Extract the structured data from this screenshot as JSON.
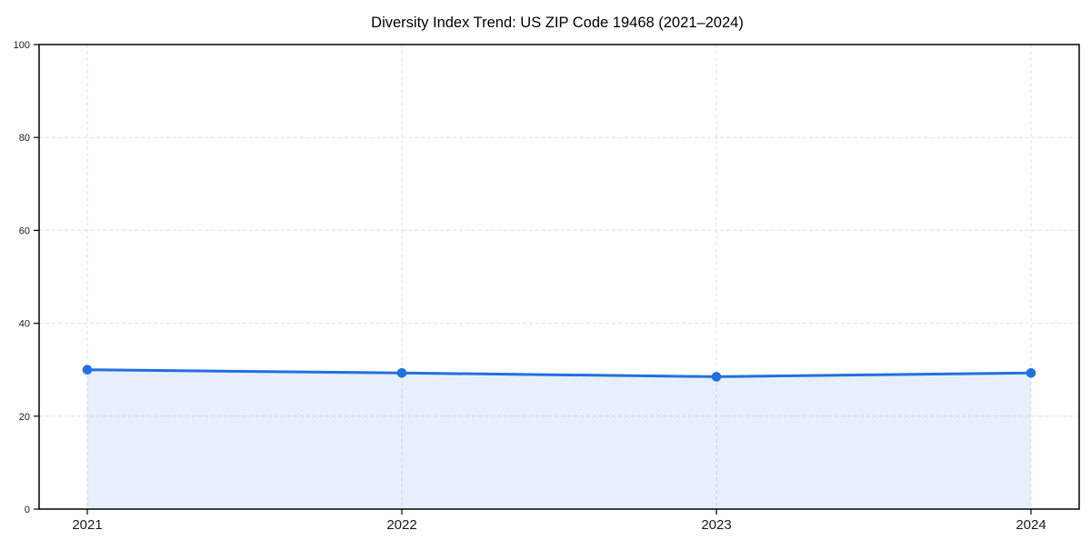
{
  "chart_data": {
    "type": "line",
    "title": "Diversity Index Trend: US ZIP Code 19468 (2021–2024)",
    "categories": [
      "2021",
      "2022",
      "2023",
      "2024"
    ],
    "series": [
      {
        "name": "Diversity Index",
        "values": [
          30.0,
          29.3,
          28.5,
          29.3
        ]
      }
    ],
    "xlabel": "",
    "ylabel": "",
    "ylim": [
      0,
      100
    ],
    "yticks": [
      "0",
      "20",
      "40",
      "60",
      "80",
      "100"
    ],
    "grid": {
      "visible": true,
      "style": "dashed",
      "axes": "both"
    },
    "legend_position": "none",
    "area_fill": true,
    "marker": "circle",
    "colors": {
      "line": "#2170e0",
      "marker": "#2170e0",
      "area": "#2170e0",
      "area_opacity": 0.11,
      "grid": "#e0e0e0",
      "spine": "#000000",
      "tick_label": "#1a1a1a",
      "title": "#000000",
      "background": "#ffffff"
    }
  }
}
